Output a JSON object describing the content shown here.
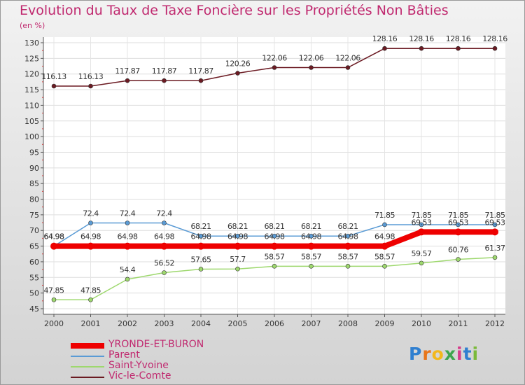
{
  "title": "Evolution du Taux de Taxe Foncière sur les Propriétés Non Bâties",
  "unit_label": "(en %)",
  "logo": "Proxiti",
  "chart_data": {
    "type": "line",
    "title": "Evolution du Taux de Taxe Foncière sur les Propriétés Non Bâties",
    "ylabel": "(en %)",
    "xlabel": "",
    "ylim": [
      45,
      130
    ],
    "y_ticks": [
      45,
      50,
      55,
      60,
      65,
      70,
      75,
      80,
      85,
      90,
      95,
      100,
      105,
      110,
      115,
      120,
      125,
      130
    ],
    "categories": [
      "2000",
      "2001",
      "2002",
      "2003",
      "2004",
      "2005",
      "2006",
      "2007",
      "2008",
      "2009",
      "2010",
      "2011",
      "2012"
    ],
    "series": [
      {
        "name": "Vic-le-Comte",
        "color": "#6b1a22",
        "width": 1.5,
        "values": [
          116.13,
          116.13,
          117.87,
          117.87,
          117.87,
          120.26,
          122.06,
          122.06,
          122.06,
          128.16,
          128.16,
          128.16,
          128.16
        ],
        "labels": [
          "116.13",
          "116.13",
          "117.87",
          "117.87",
          "117.87",
          "120.26",
          "122.06",
          "122.06",
          "122.06",
          "128.16",
          "128.16",
          "128.16",
          "128.16"
        ]
      },
      {
        "name": "Parent",
        "color": "#5a9bd5",
        "width": 1.5,
        "values": [
          64.98,
          72.4,
          72.4,
          72.4,
          68.21,
          68.21,
          68.21,
          68.21,
          68.21,
          71.85,
          71.85,
          71.85,
          71.85
        ],
        "labels": [
          "64.98",
          "72.4",
          "72.4",
          "72.4",
          "68.21",
          "68.21",
          "68.21",
          "68.21",
          "68.21",
          "71.85",
          "71.85",
          "71.85",
          "71.85"
        ]
      },
      {
        "name": "YRONDE-ET-BURON",
        "color": "#ee0000",
        "width": 8,
        "values": [
          64.98,
          64.98,
          64.98,
          64.98,
          64.98,
          64.98,
          64.98,
          64.98,
          64.98,
          64.98,
          69.53,
          69.53,
          69.53
        ],
        "labels": [
          "64.98",
          "64.98",
          "64.98",
          "64.98",
          "64.98",
          "64.98",
          "64.98",
          "64.98",
          "64.98",
          "64.98",
          "69.53",
          "69.53",
          "69.53"
        ]
      },
      {
        "name": "Saint-Yvoine",
        "color": "#9ed86e",
        "width": 1.5,
        "values": [
          47.85,
          47.85,
          54.4,
          56.52,
          57.65,
          57.7,
          58.57,
          58.57,
          58.57,
          58.57,
          59.57,
          60.76,
          61.37
        ],
        "labels": [
          "47.85",
          "47.85",
          "54.4",
          "56.52",
          "57.65",
          "57.7",
          "58.57",
          "58.57",
          "58.57",
          "58.57",
          "59.57",
          "60.76",
          "61.37"
        ]
      }
    ],
    "legend": [
      "YRONDE-ET-BURON",
      "Parent",
      "Saint-Yvoine",
      "Vic-le-Comte"
    ]
  }
}
